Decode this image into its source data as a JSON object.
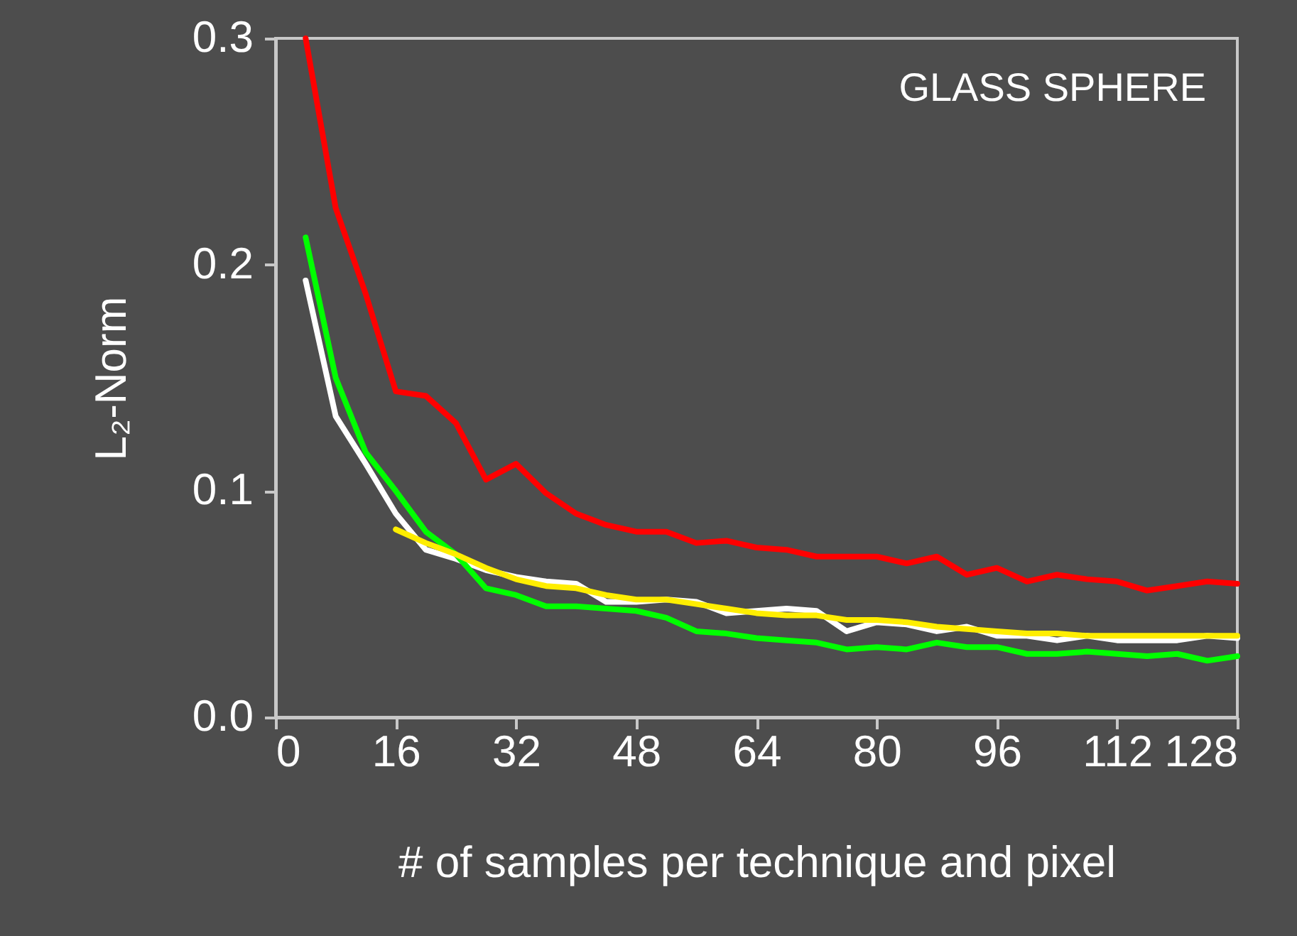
{
  "chart_data": {
    "type": "line",
    "xlabel": "# of samples per technique and pixel",
    "ylabel": "L₂-Norm",
    "annotations": [
      "GLASS SPHERE"
    ],
    "xlim": [
      0,
      128
    ],
    "ylim": [
      0,
      0.3
    ],
    "xticks": [
      0,
      16,
      32,
      48,
      64,
      80,
      96,
      112,
      128
    ],
    "yticks": [
      {
        "value": 0,
        "label": "0.0"
      },
      {
        "value": 0.1,
        "label": "0.1"
      },
      {
        "value": 0.2,
        "label": "0.2"
      },
      {
        "value": 0.3,
        "label": "0.3"
      }
    ],
    "grid": false,
    "legend": false,
    "marker": "none",
    "line_style": "solid",
    "series": [
      {
        "color": "#ff0000",
        "x": [
          4,
          8,
          12,
          16,
          20,
          24,
          28,
          32,
          36,
          40,
          44,
          48,
          52,
          56,
          60,
          64,
          68,
          72,
          76,
          80,
          84,
          88,
          92,
          96,
          100,
          104,
          108,
          112,
          116,
          120,
          124,
          128
        ],
        "values": [
          0.3,
          0.225,
          0.187,
          0.144,
          0.142,
          0.13,
          0.105,
          0.112,
          0.099,
          0.09,
          0.085,
          0.082,
          0.082,
          0.077,
          0.078,
          0.075,
          0.074,
          0.071,
          0.071,
          0.071,
          0.068,
          0.071,
          0.063,
          0.066,
          0.06,
          0.063,
          0.061,
          0.06,
          0.056,
          0.058,
          0.06,
          0.059
        ]
      },
      {
        "color": "#ffffff",
        "x": [
          4,
          8,
          12,
          16,
          20,
          24,
          28,
          32,
          36,
          40,
          44,
          48,
          52,
          56,
          60,
          64,
          68,
          72,
          76,
          80,
          84,
          88,
          92,
          96,
          100,
          104,
          108,
          112,
          116,
          120,
          124,
          128
        ],
        "values": [
          0.193,
          0.133,
          0.112,
          0.09,
          0.074,
          0.07,
          0.065,
          0.062,
          0.06,
          0.059,
          0.051,
          0.051,
          0.052,
          0.051,
          0.046,
          0.047,
          0.048,
          0.047,
          0.038,
          0.042,
          0.041,
          0.038,
          0.04,
          0.036,
          0.036,
          0.034,
          0.036,
          0.034,
          0.034,
          0.034,
          0.036,
          0.035
        ]
      },
      {
        "color": "#00ff00",
        "x": [
          4,
          8,
          12,
          16,
          20,
          24,
          28,
          32,
          36,
          40,
          44,
          48,
          52,
          56,
          60,
          64,
          68,
          72,
          76,
          80,
          84,
          88,
          92,
          96,
          100,
          104,
          108,
          112,
          116,
          120,
          124,
          128
        ],
        "values": [
          0.212,
          0.15,
          0.117,
          0.1,
          0.082,
          0.072,
          0.057,
          0.054,
          0.049,
          0.049,
          0.048,
          0.047,
          0.044,
          0.038,
          0.037,
          0.035,
          0.034,
          0.033,
          0.03,
          0.031,
          0.03,
          0.033,
          0.031,
          0.031,
          0.028,
          0.028,
          0.029,
          0.028,
          0.027,
          0.028,
          0.025,
          0.027
        ]
      },
      {
        "color": "#ffee00",
        "x": [
          16,
          20,
          24,
          28,
          32,
          36,
          40,
          44,
          48,
          52,
          56,
          60,
          64,
          68,
          72,
          76,
          80,
          84,
          88,
          92,
          96,
          100,
          104,
          108,
          112,
          116,
          120,
          124,
          128
        ],
        "values": [
          0.083,
          0.077,
          0.072,
          0.066,
          0.061,
          0.058,
          0.057,
          0.054,
          0.052,
          0.052,
          0.05,
          0.048,
          0.046,
          0.045,
          0.045,
          0.043,
          0.043,
          0.042,
          0.04,
          0.039,
          0.038,
          0.037,
          0.037,
          0.036,
          0.036,
          0.036,
          0.036,
          0.036,
          0.036
        ]
      }
    ]
  }
}
